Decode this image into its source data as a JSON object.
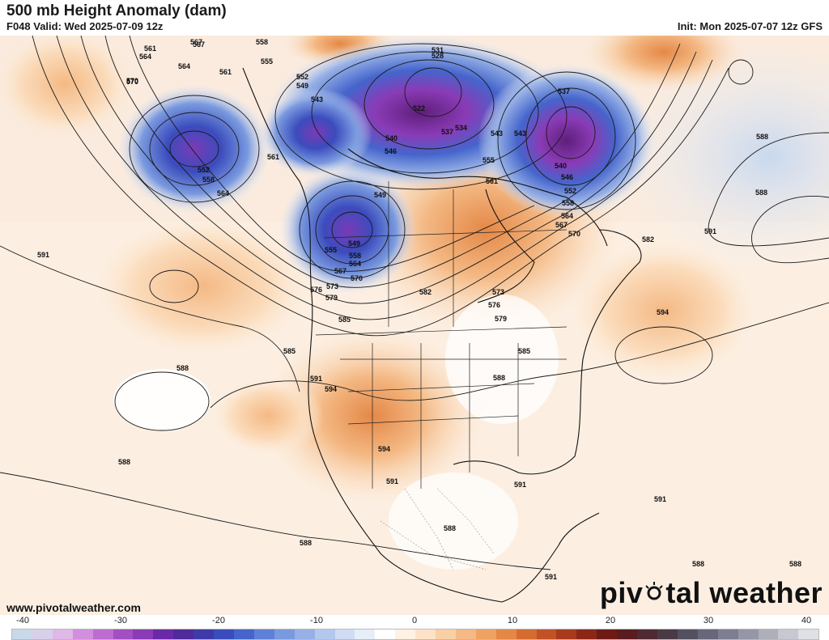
{
  "header": {
    "title": "500 mb Height Anomaly (dam)",
    "valid": "F048 Valid: Wed 2025-07-09 12z",
    "init": "Init: Mon 2025-07-07 12z GFS"
  },
  "footer": {
    "website": "www.pivotalweather.com",
    "brand_left": "piv",
    "brand_right": "tal weather"
  },
  "colorbar": {
    "tick_labels": [
      "-40",
      "-30",
      "-20",
      "-10",
      "0",
      "10",
      "20",
      "30",
      "40"
    ],
    "colors": [
      "#c9d8ea",
      "#d8d0ea",
      "#e0b8e8",
      "#d28fdd",
      "#bd6ccf",
      "#a24fc1",
      "#8a3bb6",
      "#6a2aa8",
      "#502a9a",
      "#3f3aa8",
      "#3b4cbd",
      "#4565cc",
      "#5f80d7",
      "#7a9adf",
      "#97b1e6",
      "#b4c8ee",
      "#cfdcf3",
      "#e6eef8",
      "#ffffff",
      "#fff1e3",
      "#fde2c7",
      "#f9cfa6",
      "#f4b984",
      "#eea264",
      "#e48847",
      "#d46c32",
      "#c25226",
      "#a83a1e",
      "#8c2718",
      "#6e1b16",
      "#5a1c1f",
      "#4f2a33",
      "#4a3a46",
      "#555060",
      "#67667a",
      "#7d7e90",
      "#9596a6",
      "#aeafbb",
      "#c7c8d0",
      "#dfe0e5"
    ]
  },
  "map": {
    "contour_labels": [
      "567",
      "558",
      "561",
      "564",
      "555",
      "552",
      "549",
      "561",
      "564",
      "570",
      "531",
      "528",
      "522",
      "537",
      "543",
      "540",
      "546",
      "537",
      "534",
      "543",
      "555",
      "561",
      "552",
      "558",
      "564",
      "567",
      "570",
      "546",
      "549",
      "540",
      "543",
      "552",
      "558",
      "561",
      "564",
      "555",
      "567",
      "570",
      "573",
      "576",
      "579",
      "585",
      "549",
      "558",
      "564",
      "567",
      "570",
      "582",
      "573",
      "576",
      "579",
      "585",
      "588",
      "591",
      "594",
      "591",
      "588",
      "594",
      "591",
      "588",
      "588",
      "591",
      "588",
      "594",
      "591",
      "585",
      "582",
      "588",
      "591",
      "588",
      "588",
      "588",
      "591"
    ],
    "anomaly_features": [
      {
        "type": "negative",
        "strength": "strong",
        "label": "Gulf of Alaska low"
      },
      {
        "type": "negative",
        "strength": "strong",
        "label": "Pacific Northwest low"
      },
      {
        "type": "negative",
        "strength": "very strong",
        "label": "Arctic / Hudson Bay low"
      },
      {
        "type": "negative",
        "strength": "strong",
        "label": "Greenland low"
      },
      {
        "type": "positive",
        "strength": "moderate",
        "label": "Central Canada ridge"
      },
      {
        "type": "positive",
        "strength": "moderate",
        "label": "Southwest US ridge"
      },
      {
        "type": "positive",
        "strength": "moderate",
        "label": "North Atlantic ridge"
      }
    ]
  }
}
